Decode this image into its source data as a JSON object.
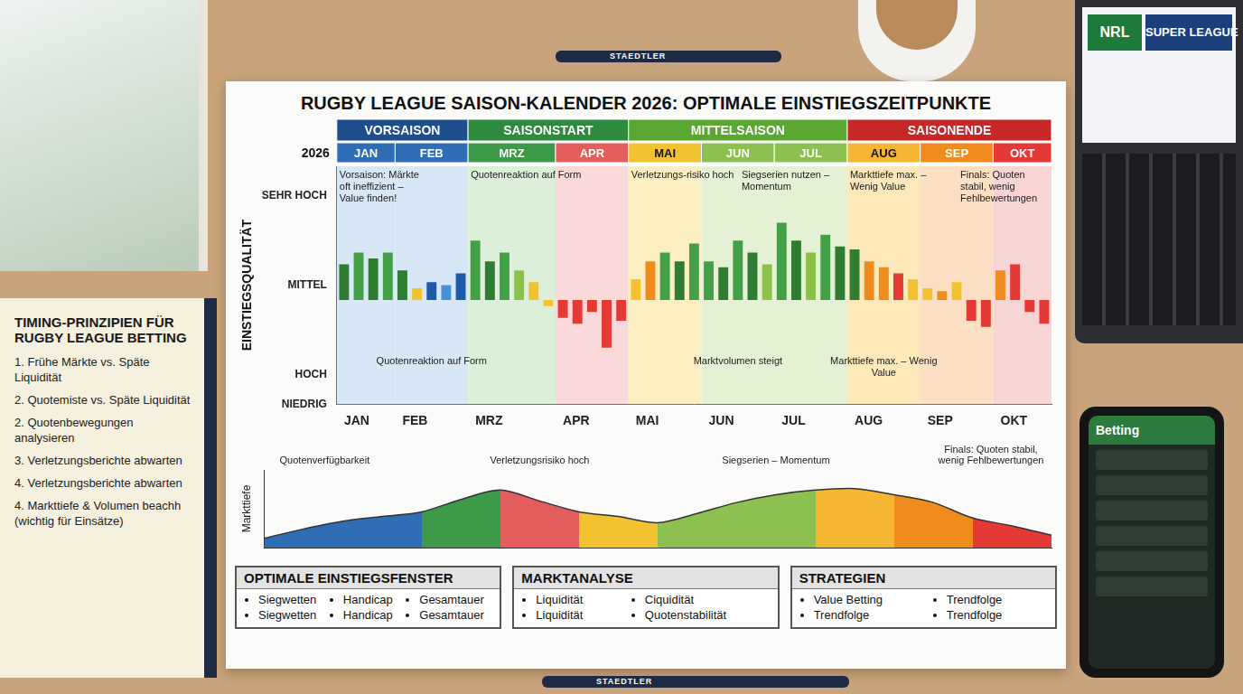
{
  "title": "RUGBY LEAGUE SAISON-KALENDER 2026: OPTIMALE EINSTIEGSZEITPUNKTE",
  "year_label": "2026",
  "seasons": [
    {
      "name": "VORSAISON",
      "months": [
        "JAN",
        "FEB"
      ],
      "color": "#1f4e8c"
    },
    {
      "name": "SAISONSTART",
      "months": [
        "MRZ",
        "APR"
      ],
      "color": "#2e8b3e"
    },
    {
      "name": "MITTELSAISON",
      "months": [
        "MAI",
        "JUN",
        "JUL"
      ],
      "color": "#5aa832"
    },
    {
      "name": "SAISONENDE",
      "months": [
        "AUG",
        "SEP",
        "OKT"
      ],
      "color": "#c62828"
    }
  ],
  "months": [
    {
      "name": "JAN",
      "color": "#2f6db5",
      "band": "#d8e7f6"
    },
    {
      "name": "FEB",
      "color": "#2f6db5",
      "band": "#d8e7f6"
    },
    {
      "name": "MRZ",
      "color": "#3c9a48",
      "band": "#dcefd9"
    },
    {
      "name": "APR",
      "color": "#e35d5d",
      "band": "#f9d9d9"
    },
    {
      "name": "MAI",
      "color": "#f2c230",
      "band": "#fbefc2"
    },
    {
      "name": "JUN",
      "color": "#8cc152",
      "band": "#e4f1d4"
    },
    {
      "name": "JUL",
      "color": "#8cc152",
      "band": "#e4f1d4"
    },
    {
      "name": "AUG",
      "color": "#f5b731",
      "band": "#fce8b8"
    },
    {
      "name": "SEP",
      "color": "#f08c1e",
      "band": "#fde0c4"
    },
    {
      "name": "OKT",
      "color": "#e53935",
      "band": "#f9d4d4"
    }
  ],
  "chart_data": [
    {
      "type": "bar",
      "y_label": "EINSTIEGSQUALITÄT",
      "categories": [
        "JAN",
        null,
        null,
        null,
        "FEB",
        null,
        null,
        null,
        null,
        "MRZ",
        null,
        null,
        null,
        null,
        null,
        "APR",
        null,
        null,
        null,
        null,
        "MAI",
        null,
        null,
        null,
        null,
        "JUN",
        null,
        null,
        null,
        null,
        "JUL",
        null,
        null,
        null,
        null,
        "AUG",
        null,
        null,
        null,
        null,
        "SEP",
        null,
        null,
        null,
        null,
        "OKT",
        null,
        null,
        null
      ],
      "values": [
        1.2,
        1.6,
        1.4,
        1.6,
        1.0,
        0.4,
        0.6,
        0.5,
        0.9,
        2.0,
        1.3,
        1.6,
        1.0,
        0.6,
        -0.2,
        -0.6,
        -0.8,
        -0.4,
        -1.6,
        -0.7,
        0.7,
        1.3,
        1.6,
        1.3,
        1.9,
        1.3,
        1.1,
        2.0,
        1.6,
        1.2,
        2.6,
        2.0,
        1.6,
        2.2,
        1.8,
        1.7,
        1.3,
        1.1,
        0.9,
        0.7,
        0.4,
        0.3,
        0.6,
        -0.7,
        -0.9,
        1.0,
        1.2,
        -0.4,
        -0.8
      ],
      "colors": [
        "#2e7d32",
        "#43a047",
        "#2e7d32",
        "#43a047",
        "#2e7d32",
        "#f2c230",
        "#1e5aa8",
        "#4a90d9",
        "#1e5aa8",
        "#43a047",
        "#2e7d32",
        "#43a047",
        "#8bc34a",
        "#f2c230",
        "#f2c230",
        "#e53935",
        "#e53935",
        "#e53935",
        "#e53935",
        "#e53935",
        "#f2c230",
        "#f08c1e",
        "#43a047",
        "#2e7d32",
        "#43a047",
        "#43a047",
        "#2e7d32",
        "#43a047",
        "#2e7d32",
        "#8bc34a",
        "#43a047",
        "#2e7d32",
        "#8bc34a",
        "#43a047",
        "#2e7d32",
        "#2e7d32",
        "#f08c1e",
        "#f08c1e",
        "#e53935",
        "#f2c230",
        "#f2c230",
        "#f08c1e",
        "#f2c230",
        "#e53935",
        "#e53935",
        "#f08c1e",
        "#e53935",
        "#e53935",
        "#e53935"
      ],
      "ylim": [
        -3.5,
        4.5
      ],
      "yticks": [
        {
          "value": -3.5,
          "label": "NIEDRIG"
        },
        {
          "value": -2.5,
          "label": "HOCH"
        },
        {
          "value": 0.5,
          "label": "MITTEL"
        },
        {
          "value": 3.5,
          "label": "SEHR HOCH"
        }
      ],
      "grid": false,
      "upper_notes": [
        {
          "text": "Vorsaison: Märkte oft ineffizient – Value finden!",
          "month": "JAN"
        },
        {
          "text": "Quotenreaktion auf Form",
          "month": "MRZ"
        },
        {
          "text": "Verletzungs-risiko hoch",
          "month": "MAI"
        },
        {
          "text": "Siegserien nutzen – Momentum",
          "month": "JUL"
        },
        {
          "text": "Markttiefe max. – Wenig Value",
          "month": "AUG"
        },
        {
          "text": "Finals: Quoten stabil, wenig Fehlbewertungen",
          "month": "OKT"
        }
      ],
      "lower_notes": [
        {
          "text": "Quotenreaktion auf Form",
          "month": "FEB"
        },
        {
          "text": "Marktvolumen steigt",
          "month": "JUN"
        },
        {
          "text": "Markttiefe max. – Wenig Value",
          "month": "AUG"
        }
      ]
    },
    {
      "type": "area",
      "y_label": "Markttiefe",
      "categories": [
        null,
        null,
        null,
        null,
        null,
        null,
        null,
        null,
        null,
        null,
        null,
        null,
        null,
        null,
        null,
        null,
        null,
        null,
        null,
        null,
        null
      ],
      "values": [
        1.2,
        2.4,
        3.4,
        4.0,
        4.6,
        6.2,
        7.4,
        6.0,
        4.6,
        4.0,
        3.2,
        4.4,
        5.8,
        6.8,
        7.4,
        7.6,
        6.8,
        5.8,
        3.8,
        2.8,
        1.6
      ],
      "color": "#333333",
      "ylim": [
        0,
        10
      ],
      "tick_labels": false,
      "grid": false,
      "notes": [
        {
          "text": "Quotenverfügbarkeit",
          "month": "JAN"
        },
        {
          "text": "Verletzungsrisiko hoch",
          "month": "APR"
        },
        {
          "text": "Siegserien – Momentum",
          "month": "JUL"
        },
        {
          "text": "Finals: Quoten stabil, wenig Fehlbewertungen",
          "month": "OKT"
        }
      ]
    }
  ],
  "boxes": [
    {
      "title": "OPTIMALE EINSTIEGSFENSTER",
      "items": [
        "Siegwetten",
        "Handicap",
        "Gesamtauer",
        "Siegwetten",
        "Handicap",
        "Gesamtauer"
      ]
    },
    {
      "title": "MARKTANALYSE",
      "items": [
        "Liquidität",
        "Ciquidität",
        "Liquidität",
        "Quotenstabilität"
      ]
    },
    {
      "title": "STRATEGIEN",
      "items": [
        "Value Betting",
        "Trendfolge",
        "Trendfolge",
        "Trendfolge"
      ]
    }
  ],
  "notebook": {
    "title": "TIMING-PRINZIPIEN FÜR RUGBY LEAGUE BETTING",
    "items": [
      "1. Frühe Märkte vs. Späte Liquidität",
      "2. Quotemiste vs. Späte Liquidität",
      "2. Quotenbewegungen analysieren",
      "3. Verletzungsberichte abwarten",
      "4. Verletzungsberichte abwarten",
      "4. Markttiefe & Volumen beachh (wichtig für Einsätze)"
    ]
  },
  "laptop": {
    "logos": [
      "NRL",
      "SUPER LEAGUE"
    ]
  },
  "phone": {
    "title": "Betting"
  },
  "pens": [
    "STAEDTLER",
    "STAEDTLER"
  ]
}
